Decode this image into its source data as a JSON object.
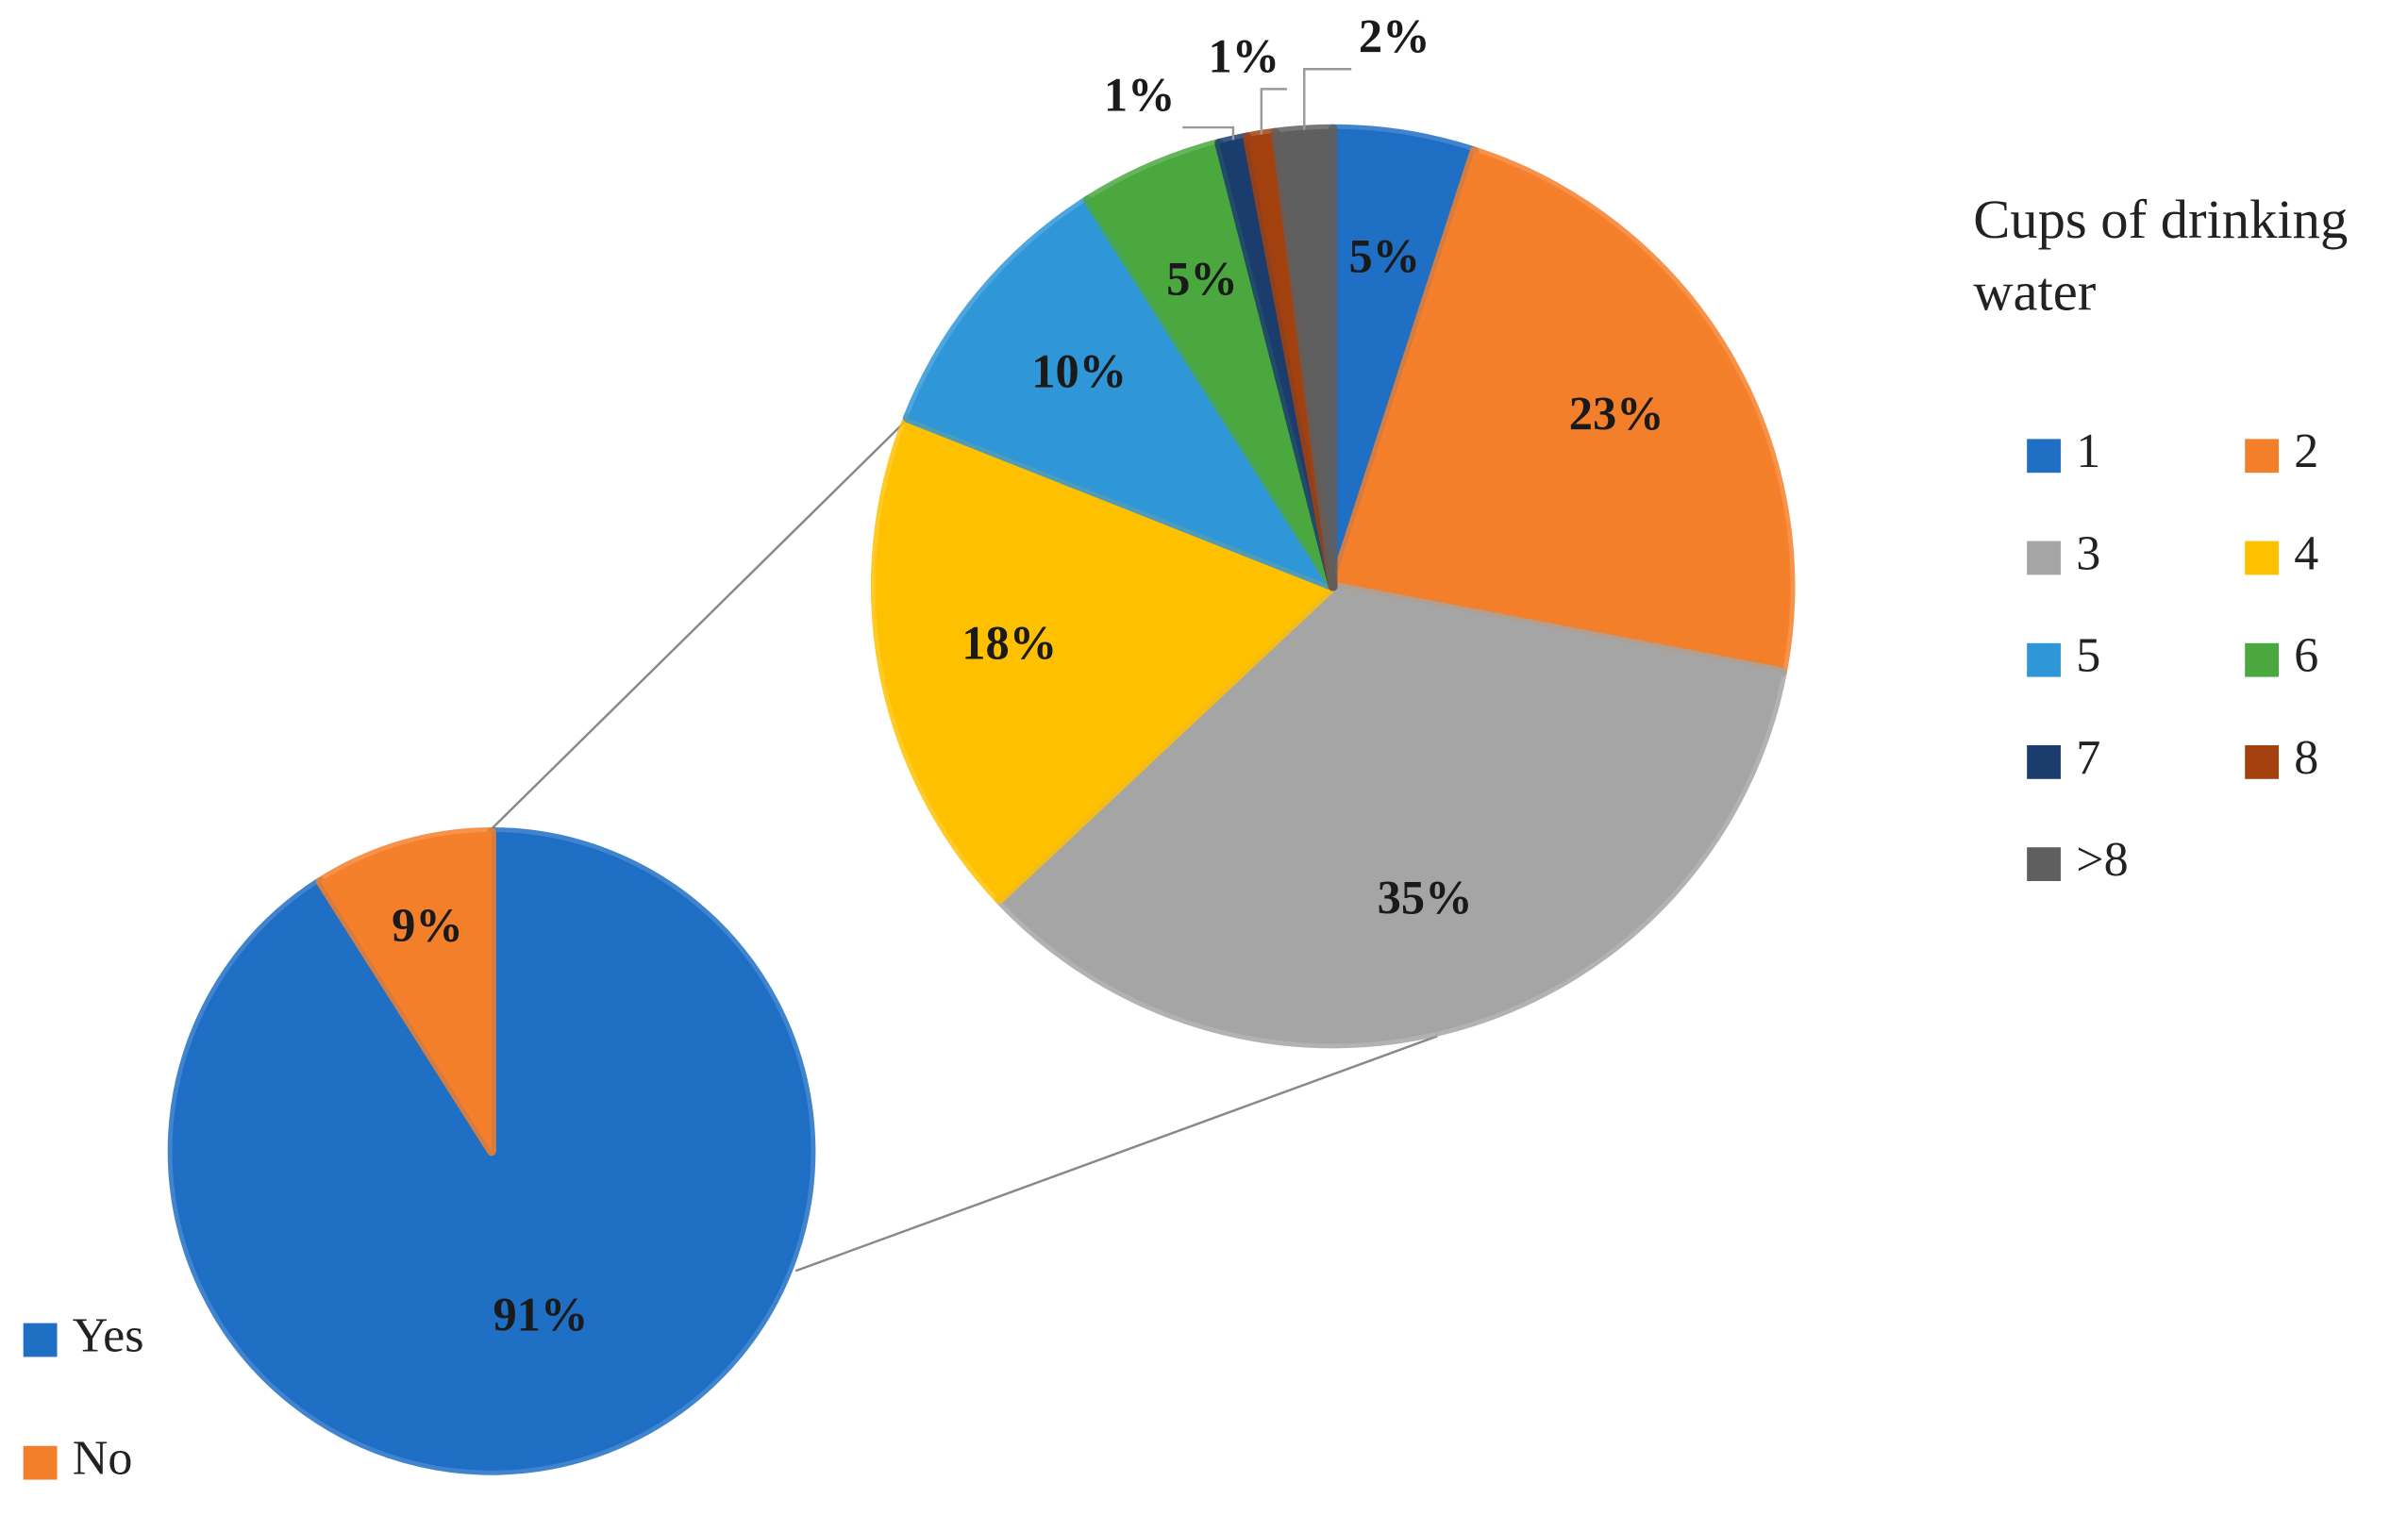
{
  "chart_data": [
    {
      "type": "pie",
      "categories": [
        "Yes",
        "No"
      ],
      "values": [
        91,
        9
      ],
      "value_labels": [
        "91%",
        "9%"
      ],
      "colors": [
        "#1f6fc5",
        "#f47f2a"
      ]
    },
    {
      "type": "pie",
      "legend_title": "Cups of drinking water",
      "categories": [
        "1",
        "2",
        "3",
        "4",
        "5",
        "6",
        "7",
        "8",
        ">8"
      ],
      "values": [
        5,
        23,
        35,
        18,
        10,
        5,
        1,
        1,
        2
      ],
      "value_labels": [
        "5%",
        "23%",
        "35%",
        "18%",
        "10%",
        "5%",
        "1%",
        "1%",
        "2%"
      ],
      "colors": [
        "#1f6fc5",
        "#f47f2a",
        "#a5a5a5",
        "#ffc000",
        "#2f96d8",
        "#4aa83f",
        "#1b3d6e",
        "#a3410f",
        "#5f5f5f"
      ]
    }
  ]
}
